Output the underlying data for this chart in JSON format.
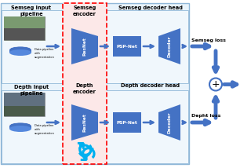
{
  "blue": "#4472c4",
  "blue_dark": "#2e5ea8",
  "cyan_refresh": "#00b0f0",
  "box_bg_light": "#e8f3fb",
  "box_bg_row": "#f0f7fc",
  "red_dashed_bg": "#fce8e8",
  "semseg_title": "Semseg Input\npipeline",
  "depth_title": "Depth Input\npipeline",
  "semseg_encoder_title": "Semseg\nencoder",
  "depth_encoder_title": "Depth\nencoder",
  "semseg_head_title": "Semseg decoder head",
  "depth_head_title": "Depth decoder head",
  "resnet_label": "ResNet",
  "pspnet_label": "PSP-Net",
  "decoder_label": "Decoder",
  "semseg_loss": "Semseg loss",
  "depth_loss": "Depht loss",
  "data_pipeline_label": "Data pipeline\nwith\naugmentation",
  "img_color_top": "#3a5a3a",
  "img_color_bot": "#3a4a5a"
}
